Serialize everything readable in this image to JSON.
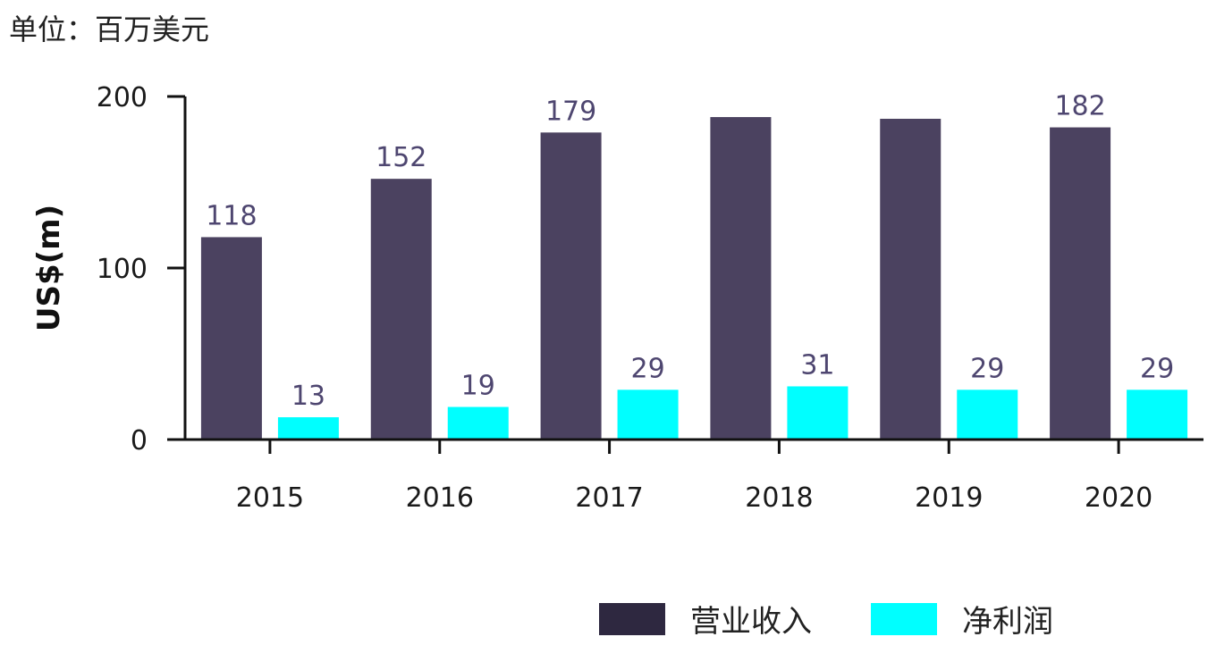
{
  "unit_label": "单位：百万美元",
  "legend": [
    {
      "label": "营业收入",
      "color": "#2e2840"
    },
    {
      "label": "净利润",
      "color": "#00ffff"
    }
  ],
  "colors": {
    "revenue_bar": "#4b4260",
    "profit_bar": "#00ffff",
    "data_label": "#4e4670",
    "axis": "#111111"
  },
  "chart_data": {
    "type": "bar",
    "categories": [
      "2015",
      "2016",
      "2017",
      "2018",
      "2019",
      "2020"
    ],
    "series": [
      {
        "name": "营业收入",
        "values": [
          118,
          152,
          179,
          188,
          187,
          182
        ],
        "labels": [
          "118",
          "152",
          "179",
          "",
          "",
          "182"
        ]
      },
      {
        "name": "净利润",
        "values": [
          13,
          19,
          29,
          31,
          29,
          29
        ],
        "labels": [
          "13",
          "19",
          "29",
          "31",
          "29",
          "29"
        ]
      }
    ],
    "xlabel": "",
    "ylabel": "US$(m)",
    "ylim": [
      0,
      200
    ],
    "yticks": [
      "0",
      "100",
      "200"
    ],
    "grid": false,
    "legend_position": "bottom-right"
  }
}
